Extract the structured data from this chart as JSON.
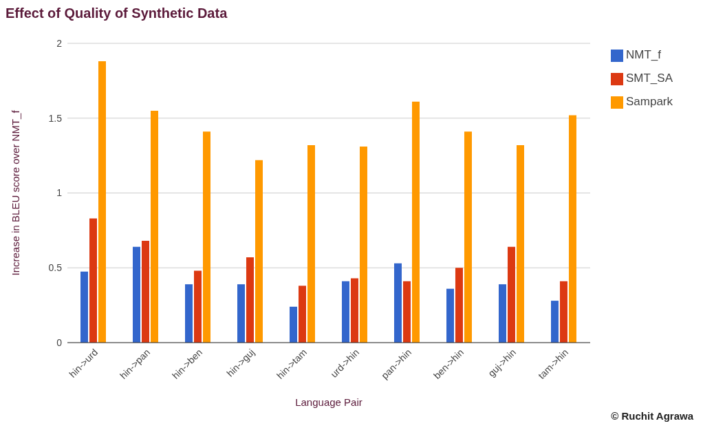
{
  "chart_data": {
    "type": "bar",
    "title": "Effect of Quality of Synthetic Data",
    "xlabel": "Language Pair",
    "ylabel": "Increase in BLEU score over NMT_f",
    "categories": [
      "hin->urd",
      "hin->pan",
      "hin->ben",
      "hin->guj",
      "hin->tam",
      "urd->hin",
      "pan->hin",
      "ben->hin",
      "guj->hin",
      "tam->hin"
    ],
    "series": [
      {
        "name": "NMT_f",
        "color": "#3366cc",
        "values": [
          0.475,
          0.64,
          0.39,
          0.39,
          0.24,
          0.41,
          0.53,
          0.36,
          0.39,
          0.28
        ]
      },
      {
        "name": "SMT_SA",
        "color": "#dc3912",
        "values": [
          0.83,
          0.68,
          0.48,
          0.57,
          0.38,
          0.43,
          0.41,
          0.5,
          0.64,
          0.41
        ]
      },
      {
        "name": "Sampark",
        "color": "#ff9900",
        "values": [
          1.88,
          1.55,
          1.41,
          1.22,
          1.32,
          1.31,
          1.61,
          1.41,
          1.32,
          1.52
        ]
      }
    ],
    "ylim": [
      0,
      2
    ],
    "yticks": [
      0,
      0.5,
      1,
      1.5,
      2
    ],
    "grid": "y",
    "legend": "top right",
    "annotations": [
      "© Ruchit Agrawa"
    ]
  }
}
